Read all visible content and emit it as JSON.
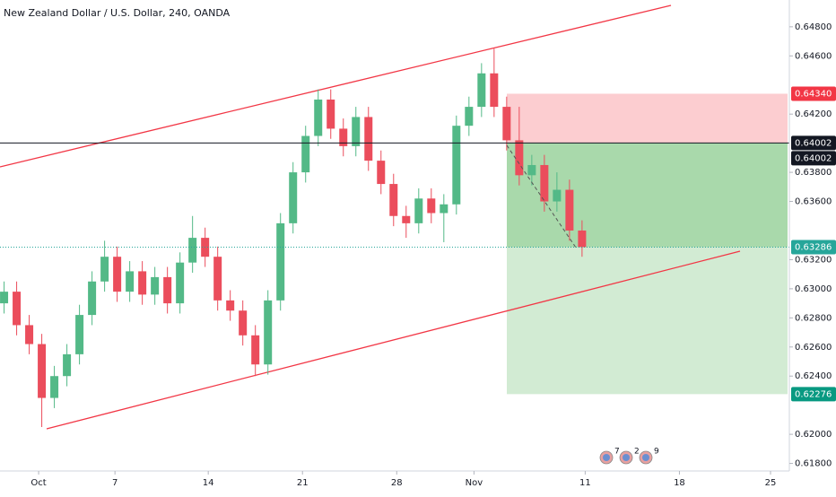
{
  "chart_data": {
    "type": "candlestick",
    "title": "New Zealand Dollar / U.S. Dollar, 240, OANDA",
    "up_color": "#53b987",
    "down_color": "#eb4d5c",
    "candles": {
      "x": [
        -11,
        -7,
        -3,
        1,
        5,
        9,
        13,
        17,
        21,
        25,
        29,
        33,
        37,
        41,
        45,
        49,
        53,
        57,
        61,
        65,
        69,
        73,
        77,
        81,
        85,
        89,
        93,
        97,
        101,
        105,
        109,
        113,
        117,
        121,
        125,
        129,
        133,
        137,
        141,
        145,
        149,
        153,
        157,
        161,
        165,
        169,
        173
      ],
      "open": [
        0.629,
        0.6298,
        0.6275,
        0.6262,
        0.6225,
        0.624,
        0.6255,
        0.6282,
        0.6305,
        0.6322,
        0.6298,
        0.6312,
        0.6296,
        0.6308,
        0.629,
        0.6318,
        0.6335,
        0.6322,
        0.6292,
        0.6285,
        0.6268,
        0.6248,
        0.6292,
        0.6345,
        0.638,
        0.6405,
        0.643,
        0.641,
        0.6398,
        0.6418,
        0.6388,
        0.6372,
        0.635,
        0.6345,
        0.6362,
        0.6352,
        0.6358,
        0.6412,
        0.6425,
        0.6448,
        0.6425,
        0.6402,
        0.6378,
        0.6385,
        0.636,
        0.6368,
        0.634
      ],
      "high": [
        0.6305,
        0.6305,
        0.6282,
        0.6269,
        0.6247,
        0.6262,
        0.6289,
        0.6312,
        0.6333,
        0.6329,
        0.6319,
        0.6319,
        0.6315,
        0.6315,
        0.6325,
        0.635,
        0.6342,
        0.6329,
        0.6299,
        0.6292,
        0.6275,
        0.6299,
        0.6352,
        0.6387,
        0.6412,
        0.6437,
        0.6437,
        0.6417,
        0.6425,
        0.6425,
        0.6395,
        0.6379,
        0.6357,
        0.6369,
        0.6369,
        0.6365,
        0.6419,
        0.6432,
        0.6455,
        0.6465,
        0.6432,
        0.6425,
        0.6392,
        0.6392,
        0.638,
        0.6375,
        0.6347
      ],
      "low": [
        0.6283,
        0.6268,
        0.6255,
        0.6205,
        0.6218,
        0.6233,
        0.6248,
        0.6275,
        0.6298,
        0.6291,
        0.6291,
        0.6289,
        0.6289,
        0.6283,
        0.6283,
        0.6311,
        0.6315,
        0.6285,
        0.6278,
        0.6261,
        0.624,
        0.6241,
        0.6285,
        0.6338,
        0.6373,
        0.6398,
        0.6403,
        0.6391,
        0.6391,
        0.6381,
        0.6365,
        0.6343,
        0.6335,
        0.6338,
        0.6345,
        0.6332,
        0.6351,
        0.6405,
        0.6418,
        0.6418,
        0.6395,
        0.6371,
        0.6371,
        0.6353,
        0.6353,
        0.6333,
        0.6322
      ],
      "close": [
        0.6298,
        0.6275,
        0.6262,
        0.6225,
        0.624,
        0.6255,
        0.6282,
        0.6305,
        0.6322,
        0.6298,
        0.6312,
        0.6296,
        0.6308,
        0.629,
        0.6318,
        0.6335,
        0.6322,
        0.6292,
        0.6285,
        0.6268,
        0.6248,
        0.6292,
        0.6345,
        0.638,
        0.6405,
        0.643,
        0.641,
        0.6398,
        0.6418,
        0.6388,
        0.6372,
        0.635,
        0.6345,
        0.6362,
        0.6352,
        0.6358,
        0.6412,
        0.6425,
        0.6448,
        0.6425,
        0.6402,
        0.6378,
        0.6385,
        0.636,
        0.6368,
        0.634,
        0.63286
      ]
    },
    "xlim": [
      -12.3,
      239
    ],
    "xticks": [
      {
        "value": 0,
        "label": "Oct"
      },
      {
        "value": 24.3,
        "label": "7"
      },
      {
        "value": 54,
        "label": "14"
      },
      {
        "value": 84,
        "label": "21"
      },
      {
        "value": 114,
        "label": "28"
      },
      {
        "value": 138.6,
        "label": "Nov"
      },
      {
        "value": 174,
        "label": "11"
      },
      {
        "value": 204,
        "label": "18"
      },
      {
        "value": 233,
        "label": "25"
      }
    ],
    "ylim": [
      0.61748,
      0.64984
    ],
    "yticks": [
      {
        "value": 0.648,
        "label": "0.64800"
      },
      {
        "value": 0.646,
        "label": "0.64600"
      },
      {
        "value": 0.642,
        "label": "0.64200"
      },
      {
        "value": 0.638,
        "label": "0.63800"
      },
      {
        "value": 0.636,
        "label": "0.63600"
      },
      {
        "value": 0.632,
        "label": "0.63200"
      },
      {
        "value": 0.63,
        "label": "0.63000"
      },
      {
        "value": 0.628,
        "label": "0.62800"
      },
      {
        "value": 0.626,
        "label": "0.62600"
      },
      {
        "value": 0.624,
        "label": "0.62400"
      },
      {
        "value": 0.62,
        "label": "0.62000"
      },
      {
        "value": 0.618,
        "label": "0.61800"
      }
    ],
    "price_labels": [
      {
        "value": 0.6434,
        "label": "0.64340",
        "color": "#f23645"
      },
      {
        "value": 0.64002,
        "label": "0.64002",
        "color": "#131722"
      },
      {
        "value": 0.63286,
        "label": "0.63286",
        "color": "#26a69a"
      },
      {
        "value": 0.62276,
        "label": "0.62276",
        "color": "#089981"
      }
    ],
    "entry_label": {
      "value": 0.64002,
      "label": "0.64002",
      "color": "#131722"
    },
    "events": [
      "7",
      "2",
      "9"
    ]
  }
}
